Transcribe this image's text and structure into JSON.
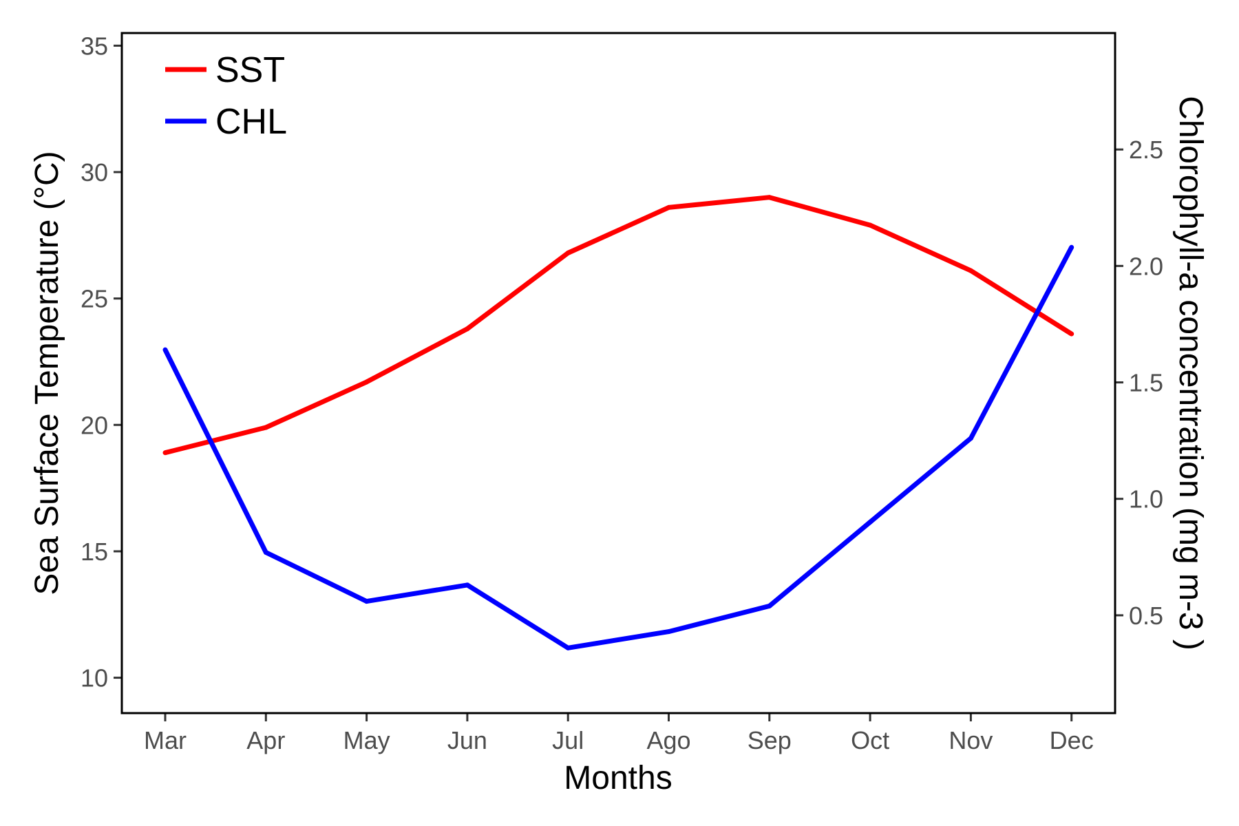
{
  "chart_data": {
    "type": "line",
    "title": "",
    "xlabel": "Months",
    "ylabel": "Sea Surface Temperature (°C)",
    "y2label": "Chlorophyll-a concentration (mg m-3 )",
    "categories": [
      "Mar",
      "Apr",
      "May",
      "Jun",
      "Jul",
      "Ago",
      "Sep",
      "Oct",
      "Nov",
      "Dec"
    ],
    "ylim": [
      8.6,
      35.5
    ],
    "y2lim": [
      0.08,
      3.0
    ],
    "yticks": [
      10,
      15,
      20,
      25,
      30,
      35
    ],
    "y2ticks": [
      0.5,
      1.0,
      1.5,
      2.0,
      2.5
    ],
    "y2tick_labels": [
      "0.5",
      "1.0",
      "1.5",
      "2.0",
      "2.5"
    ],
    "grid": false,
    "legend": "top-left",
    "series": [
      {
        "name": "SST",
        "axis": "left",
        "color": "#ff0000",
        "values": [
          18.9,
          19.9,
          21.7,
          23.8,
          26.8,
          28.6,
          29.0,
          27.9,
          26.1,
          23.6
        ]
      },
      {
        "name": "CHL",
        "axis": "right",
        "color": "#0000ff",
        "values": [
          1.64,
          0.77,
          0.56,
          0.63,
          0.36,
          0.43,
          0.54,
          0.9,
          1.26,
          2.08
        ]
      }
    ]
  }
}
